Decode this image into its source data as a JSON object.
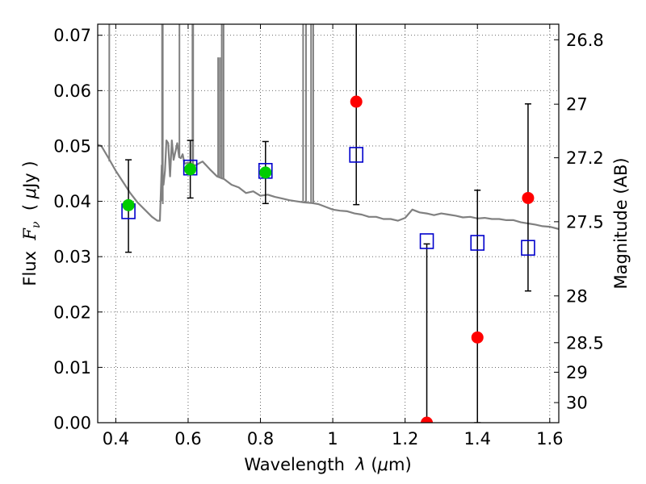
{
  "chart_data": {
    "type": "scatter",
    "xlabel_parts": [
      "Wavelength  ",
      "λ",
      " (",
      "μ",
      "m)"
    ],
    "ylabel_parts": [
      "Flux  ",
      "F",
      "ν",
      "  ( ",
      "μ",
      "Jy )"
    ],
    "y2label": "Magnitude (AB)",
    "xlim": [
      0.35,
      1.625
    ],
    "ylim": [
      0.0,
      0.072
    ],
    "grid": true,
    "x_ticks": [
      0.4,
      0.6,
      0.8,
      1.0,
      1.2,
      1.4,
      1.6
    ],
    "x_tick_labels": [
      "0.4",
      "0.6",
      "0.8",
      "1",
      "1.2",
      "1.4",
      "1.6"
    ],
    "y_ticks": [
      0.0,
      0.01,
      0.02,
      0.03,
      0.04,
      0.05,
      0.06,
      0.07
    ],
    "y_tick_labels": [
      "0.00",
      "0.01",
      "0.02",
      "0.03",
      "0.04",
      "0.05",
      "0.06",
      "0.07"
    ],
    "y2_ticks": [
      {
        "label": "26.8",
        "value": 26.8
      },
      {
        "label": "27",
        "value": 27.0
      },
      {
        "label": "27.2",
        "value": 27.2
      },
      {
        "label": "27.5",
        "value": 27.5
      },
      {
        "label": "28",
        "value": 28.0
      },
      {
        "label": "28.5",
        "value": 28.5
      },
      {
        "label": "29",
        "value": 29.0
      },
      {
        "label": "30",
        "value": 30.0
      }
    ],
    "observed_red": [
      {
        "x": 1.065,
        "y": 0.058,
        "yerr_low": 0.0394,
        "yerr_high": 0.0725
      },
      {
        "x": 1.26,
        "y": 0.0,
        "yerr_low": 0.0,
        "yerr_high": 0.0323
      },
      {
        "x": 1.4,
        "y": 0.0154,
        "yerr_low": 0.0,
        "yerr_high": 0.042
      },
      {
        "x": 1.54,
        "y": 0.0406,
        "yerr_low": 0.0238,
        "yerr_high": 0.0576
      }
    ],
    "observed_green": [
      {
        "x": 0.435,
        "y": 0.0393,
        "yerr_low": 0.0308,
        "yerr_high": 0.0475
      },
      {
        "x": 0.606,
        "y": 0.0458,
        "yerr_low": 0.0406,
        "yerr_high": 0.051
      },
      {
        "x": 0.814,
        "y": 0.0452,
        "yerr_low": 0.0396,
        "yerr_high": 0.0508
      }
    ],
    "model_photometry": [
      {
        "x": 0.435,
        "y": 0.0382
      },
      {
        "x": 0.606,
        "y": 0.0461
      },
      {
        "x": 0.814,
        "y": 0.0455
      },
      {
        "x": 1.065,
        "y": 0.0484
      },
      {
        "x": 1.26,
        "y": 0.0328
      },
      {
        "x": 1.4,
        "y": 0.0325
      },
      {
        "x": 1.54,
        "y": 0.0316
      }
    ],
    "model_spectrum": {
      "x": [
        0.35,
        0.36,
        0.38,
        0.4,
        0.42,
        0.44,
        0.46,
        0.48,
        0.5,
        0.515,
        0.522,
        0.527,
        0.532,
        0.536,
        0.54,
        0.545,
        0.55,
        0.555,
        0.56,
        0.565,
        0.57,
        0.575,
        0.58,
        0.585,
        0.59,
        0.6,
        0.62,
        0.64,
        0.66,
        0.68,
        0.7,
        0.72,
        0.74,
        0.76,
        0.78,
        0.8,
        0.82,
        0.84,
        0.86,
        0.88,
        0.9,
        0.92,
        0.94,
        0.96,
        0.98,
        1.0,
        1.02,
        1.04,
        1.06,
        1.08,
        1.1,
        1.12,
        1.14,
        1.16,
        1.18,
        1.2,
        1.22,
        1.24,
        1.26,
        1.28,
        1.3,
        1.32,
        1.34,
        1.36,
        1.38,
        1.4,
        1.42,
        1.44,
        1.46,
        1.48,
        1.5,
        1.52,
        1.54,
        1.56,
        1.58,
        1.6,
        1.625
      ],
      "y": [
        0.0502,
        0.05,
        0.0478,
        0.0455,
        0.0435,
        0.0415,
        0.0398,
        0.0385,
        0.0372,
        0.0365,
        0.0365,
        0.0465,
        0.043,
        0.0455,
        0.051,
        0.0505,
        0.0445,
        0.051,
        0.0475,
        0.049,
        0.0505,
        0.048,
        0.0478,
        0.0485,
        0.0468,
        0.047,
        0.0465,
        0.0472,
        0.0458,
        0.0445,
        0.044,
        0.043,
        0.0425,
        0.0415,
        0.0418,
        0.041,
        0.0412,
        0.0408,
        0.0405,
        0.0402,
        0.04,
        0.0398,
        0.0397,
        0.0395,
        0.039,
        0.0385,
        0.0383,
        0.0382,
        0.0378,
        0.0376,
        0.0372,
        0.0372,
        0.0368,
        0.0368,
        0.0365,
        0.037,
        0.0385,
        0.038,
        0.0378,
        0.0375,
        0.0378,
        0.0376,
        0.0374,
        0.0371,
        0.0372,
        0.0369,
        0.037,
        0.0368,
        0.0368,
        0.0366,
        0.0366,
        0.0362,
        0.036,
        0.0358,
        0.0355,
        0.0354,
        0.035
      ]
    },
    "emission_lines": [
      {
        "x": 0.382,
        "y_low": 0.0472,
        "y_high": 0.072
      },
      {
        "x": 0.528,
        "y_low": 0.04,
        "y_high": 0.072
      },
      {
        "x": 0.53,
        "y_low": 0.0395,
        "y_high": 0.072
      },
      {
        "x": 0.576,
        "y_low": 0.0478,
        "y_high": 0.072
      },
      {
        "x": 0.612,
        "y_low": 0.0455,
        "y_high": 0.072
      },
      {
        "x": 0.614,
        "y_low": 0.0455,
        "y_high": 0.072
      },
      {
        "x": 0.683,
        "y_low": 0.0444,
        "y_high": 0.066
      },
      {
        "x": 0.688,
        "y_low": 0.0444,
        "y_high": 0.066
      },
      {
        "x": 0.693,
        "y_low": 0.044,
        "y_high": 0.072
      },
      {
        "x": 0.698,
        "y_low": 0.044,
        "y_high": 0.072
      },
      {
        "x": 0.918,
        "y_low": 0.04,
        "y_high": 0.072
      },
      {
        "x": 0.926,
        "y_low": 0.0399,
        "y_high": 0.072
      },
      {
        "x": 0.94,
        "y_low": 0.0397,
        "y_high": 0.072
      },
      {
        "x": 0.946,
        "y_low": 0.0397,
        "y_high": 0.072
      }
    ],
    "colors": {
      "spectrum": "#808080",
      "observed_red": "#ff0000",
      "observed_green": "#00cc00",
      "model_box": "#0000cc",
      "errorbar": "#000000",
      "grid": "#555555"
    }
  }
}
